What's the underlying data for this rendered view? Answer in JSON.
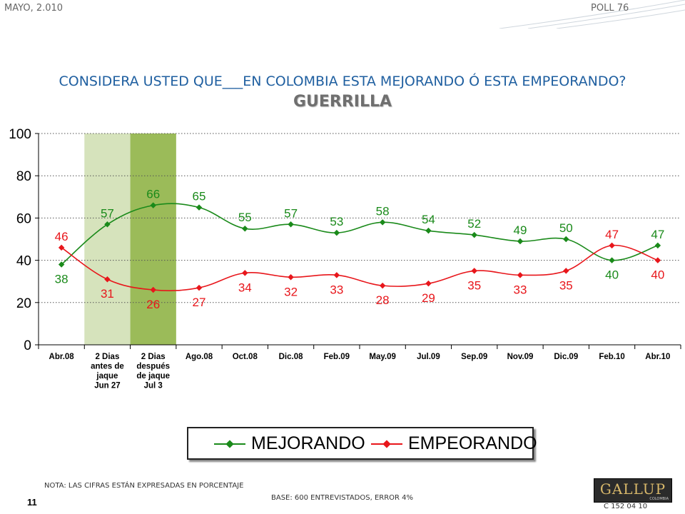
{
  "header": {
    "date": "MAYO, 2.010",
    "poll": "POLL 76"
  },
  "title": "CONSIDERA USTED QUE___EN COLOMBIA ESTA MEJORANDO Ó ESTA EMPEORANDO?",
  "subtitle": "GUERRILLA",
  "chart_data": {
    "type": "line",
    "categories": [
      "Abr.08",
      "2 Dias antes de jaque Jun 27",
      "2 Dias después de jaque Jul 3",
      "Ago.08",
      "Oct.08",
      "Dic.08",
      "Feb.09",
      "May.09",
      "Jul.09",
      "Sep.09",
      "Nov.09",
      "Dic.09",
      "Feb.10",
      "Abr.10"
    ],
    "category_lines": [
      [
        "Abr.08"
      ],
      [
        "2 Dias",
        "antes de",
        "jaque",
        "Jun 27"
      ],
      [
        "2 Dias",
        "después",
        "de jaque",
        "Jul 3"
      ],
      [
        "Ago.08"
      ],
      [
        "Oct.08"
      ],
      [
        "Dic.08"
      ],
      [
        "Feb.09"
      ],
      [
        "May.09"
      ],
      [
        "Jul.09"
      ],
      [
        "Sep.09"
      ],
      [
        "Nov.09"
      ],
      [
        "Dic.09"
      ],
      [
        "Feb.10"
      ],
      [
        "Abr.10"
      ]
    ],
    "series": [
      {
        "name": "MEJORANDO",
        "color": "#1a8a1a",
        "values": [
          38,
          57,
          66,
          65,
          55,
          57,
          53,
          58,
          54,
          52,
          49,
          50,
          40,
          47
        ],
        "label_pos": [
          "below",
          "above",
          "above",
          "above",
          "above",
          "above",
          "above",
          "above",
          "above",
          "above",
          "above",
          "above",
          "below",
          "above"
        ]
      },
      {
        "name": "EMPEORANDO",
        "color": "#e8161b",
        "values": [
          46,
          31,
          26,
          27,
          34,
          32,
          33,
          28,
          29,
          35,
          33,
          35,
          47,
          40
        ],
        "label_pos": [
          "above",
          "below",
          "below",
          "below",
          "below",
          "below",
          "below",
          "below",
          "below",
          "below",
          "below",
          "below",
          "above",
          "below"
        ]
      }
    ],
    "ylim": [
      0,
      100
    ],
    "yticks": [
      0,
      20,
      40,
      60,
      80,
      100
    ],
    "grid": "dotted horizontal",
    "highlight_bands": [
      {
        "category_index": 1,
        "color": "#d6e3bc"
      },
      {
        "category_index": 2,
        "color": "#9bbb59"
      }
    ],
    "legend": "bottom-center"
  },
  "footer": {
    "note": "NOTA: LAS CIFRAS ESTÁN EXPRESADAS EN PORCENTAJE",
    "base": "BASE: 600 ENTREVISTADOS, ERROR 4%",
    "page": "11",
    "code": "C 152 04 10",
    "logo": "GALLUP",
    "logo_sub": "COLOMBIA"
  }
}
